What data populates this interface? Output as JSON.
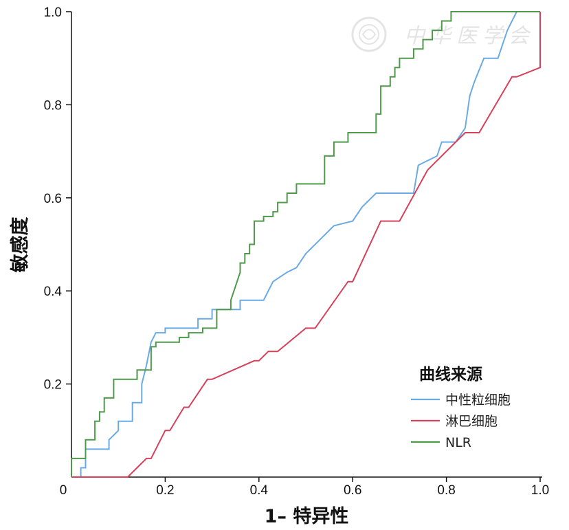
{
  "chart_data": {
    "type": "line",
    "title": "",
    "xlabel": "1– 特异性",
    "ylabel": "敏感度",
    "xlim": [
      0,
      1
    ],
    "ylim": [
      0,
      1
    ],
    "x_ticks": [
      "0",
      "0.2",
      "0.4",
      "0.6",
      "0.8",
      "1.0"
    ],
    "y_ticks": [
      "0.2",
      "0.4",
      "0.6",
      "0.8",
      "1.0"
    ],
    "grid": false,
    "legend": {
      "title": "曲线来源",
      "placement": "bottom-right"
    },
    "series": [
      {
        "name": "中性粒细胞",
        "color": "#6aaae4",
        "points": [
          [
            0,
            0
          ],
          [
            0.02,
            0
          ],
          [
            0.02,
            0.02
          ],
          [
            0.03,
            0.02
          ],
          [
            0.03,
            0.06
          ],
          [
            0.08,
            0.06
          ],
          [
            0.08,
            0.08
          ],
          [
            0.1,
            0.1
          ],
          [
            0.1,
            0.12
          ],
          [
            0.13,
            0.12
          ],
          [
            0.13,
            0.16
          ],
          [
            0.15,
            0.16
          ],
          [
            0.15,
            0.2
          ],
          [
            0.16,
            0.24
          ],
          [
            0.17,
            0.29
          ],
          [
            0.18,
            0.31
          ],
          [
            0.2,
            0.31
          ],
          [
            0.2,
            0.32
          ],
          [
            0.27,
            0.32
          ],
          [
            0.27,
            0.34
          ],
          [
            0.3,
            0.34
          ],
          [
            0.3,
            0.36
          ],
          [
            0.36,
            0.36
          ],
          [
            0.36,
            0.38
          ],
          [
            0.41,
            0.38
          ],
          [
            0.43,
            0.42
          ],
          [
            0.46,
            0.44
          ],
          [
            0.48,
            0.45
          ],
          [
            0.5,
            0.48
          ],
          [
            0.53,
            0.51
          ],
          [
            0.56,
            0.54
          ],
          [
            0.6,
            0.55
          ],
          [
            0.62,
            0.58
          ],
          [
            0.65,
            0.61
          ],
          [
            0.73,
            0.61
          ],
          [
            0.74,
            0.67
          ],
          [
            0.78,
            0.69
          ],
          [
            0.79,
            0.72
          ],
          [
            0.82,
            0.72
          ],
          [
            0.84,
            0.75
          ],
          [
            0.85,
            0.82
          ],
          [
            0.86,
            0.85
          ],
          [
            0.88,
            0.9
          ],
          [
            0.91,
            0.9
          ],
          [
            0.92,
            0.93
          ],
          [
            0.93,
            0.96
          ],
          [
            0.94,
            0.98
          ],
          [
            0.95,
            1.0
          ],
          [
            1.0,
            1.0
          ]
        ]
      },
      {
        "name": "淋巴细胞",
        "color": "#d6405a",
        "points": [
          [
            0,
            0
          ],
          [
            0.12,
            0
          ],
          [
            0.16,
            0.04
          ],
          [
            0.17,
            0.04
          ],
          [
            0.2,
            0.1
          ],
          [
            0.21,
            0.1
          ],
          [
            0.24,
            0.15
          ],
          [
            0.25,
            0.15
          ],
          [
            0.29,
            0.21
          ],
          [
            0.3,
            0.21
          ],
          [
            0.39,
            0.25
          ],
          [
            0.4,
            0.25
          ],
          [
            0.42,
            0.27
          ],
          [
            0.44,
            0.27
          ],
          [
            0.5,
            0.32
          ],
          [
            0.52,
            0.32
          ],
          [
            0.59,
            0.42
          ],
          [
            0.6,
            0.42
          ],
          [
            0.66,
            0.55
          ],
          [
            0.7,
            0.55
          ],
          [
            0.76,
            0.66
          ],
          [
            0.77,
            0.67
          ],
          [
            0.84,
            0.74
          ],
          [
            0.87,
            0.74
          ],
          [
            0.94,
            0.86
          ],
          [
            0.95,
            0.86
          ],
          [
            1.0,
            0.88
          ],
          [
            1.0,
            1.0
          ]
        ]
      },
      {
        "name": "NLR",
        "color": "#4e9a4a",
        "points": [
          [
            0,
            0
          ],
          [
            0,
            0.04
          ],
          [
            0.03,
            0.04
          ],
          [
            0.03,
            0.08
          ],
          [
            0.05,
            0.08
          ],
          [
            0.05,
            0.12
          ],
          [
            0.06,
            0.12
          ],
          [
            0.06,
            0.14
          ],
          [
            0.07,
            0.14
          ],
          [
            0.07,
            0.17
          ],
          [
            0.09,
            0.17
          ],
          [
            0.09,
            0.21
          ],
          [
            0.14,
            0.21
          ],
          [
            0.14,
            0.23
          ],
          [
            0.17,
            0.23
          ],
          [
            0.17,
            0.28
          ],
          [
            0.18,
            0.28
          ],
          [
            0.18,
            0.29
          ],
          [
            0.23,
            0.29
          ],
          [
            0.23,
            0.3
          ],
          [
            0.25,
            0.3
          ],
          [
            0.25,
            0.31
          ],
          [
            0.28,
            0.31
          ],
          [
            0.28,
            0.32
          ],
          [
            0.31,
            0.32
          ],
          [
            0.31,
            0.36
          ],
          [
            0.34,
            0.36
          ],
          [
            0.34,
            0.38
          ],
          [
            0.35,
            0.41
          ],
          [
            0.36,
            0.44
          ],
          [
            0.36,
            0.46
          ],
          [
            0.37,
            0.46
          ],
          [
            0.37,
            0.48
          ],
          [
            0.38,
            0.48
          ],
          [
            0.38,
            0.5
          ],
          [
            0.39,
            0.5
          ],
          [
            0.39,
            0.55
          ],
          [
            0.41,
            0.55
          ],
          [
            0.41,
            0.56
          ],
          [
            0.43,
            0.56
          ],
          [
            0.43,
            0.57
          ],
          [
            0.44,
            0.57
          ],
          [
            0.44,
            0.59
          ],
          [
            0.46,
            0.59
          ],
          [
            0.46,
            0.61
          ],
          [
            0.48,
            0.61
          ],
          [
            0.48,
            0.63
          ],
          [
            0.54,
            0.63
          ],
          [
            0.54,
            0.69
          ],
          [
            0.56,
            0.69
          ],
          [
            0.56,
            0.72
          ],
          [
            0.59,
            0.72
          ],
          [
            0.59,
            0.74
          ],
          [
            0.65,
            0.74
          ],
          [
            0.65,
            0.78
          ],
          [
            0.66,
            0.78
          ],
          [
            0.66,
            0.84
          ],
          [
            0.68,
            0.84
          ],
          [
            0.68,
            0.86
          ],
          [
            0.69,
            0.86
          ],
          [
            0.69,
            0.88
          ],
          [
            0.7,
            0.88
          ],
          [
            0.7,
            0.9
          ],
          [
            0.73,
            0.9
          ],
          [
            0.73,
            0.92
          ],
          [
            0.75,
            0.92
          ],
          [
            0.75,
            0.94
          ],
          [
            0.77,
            0.94
          ],
          [
            0.77,
            0.96
          ],
          [
            0.79,
            0.96
          ],
          [
            0.79,
            0.98
          ],
          [
            0.81,
            0.98
          ],
          [
            0.81,
            1.0
          ],
          [
            1.0,
            1.0
          ]
        ]
      }
    ]
  },
  "watermark": {
    "text": "中华医学会",
    "icon": "society-seal-icon"
  }
}
